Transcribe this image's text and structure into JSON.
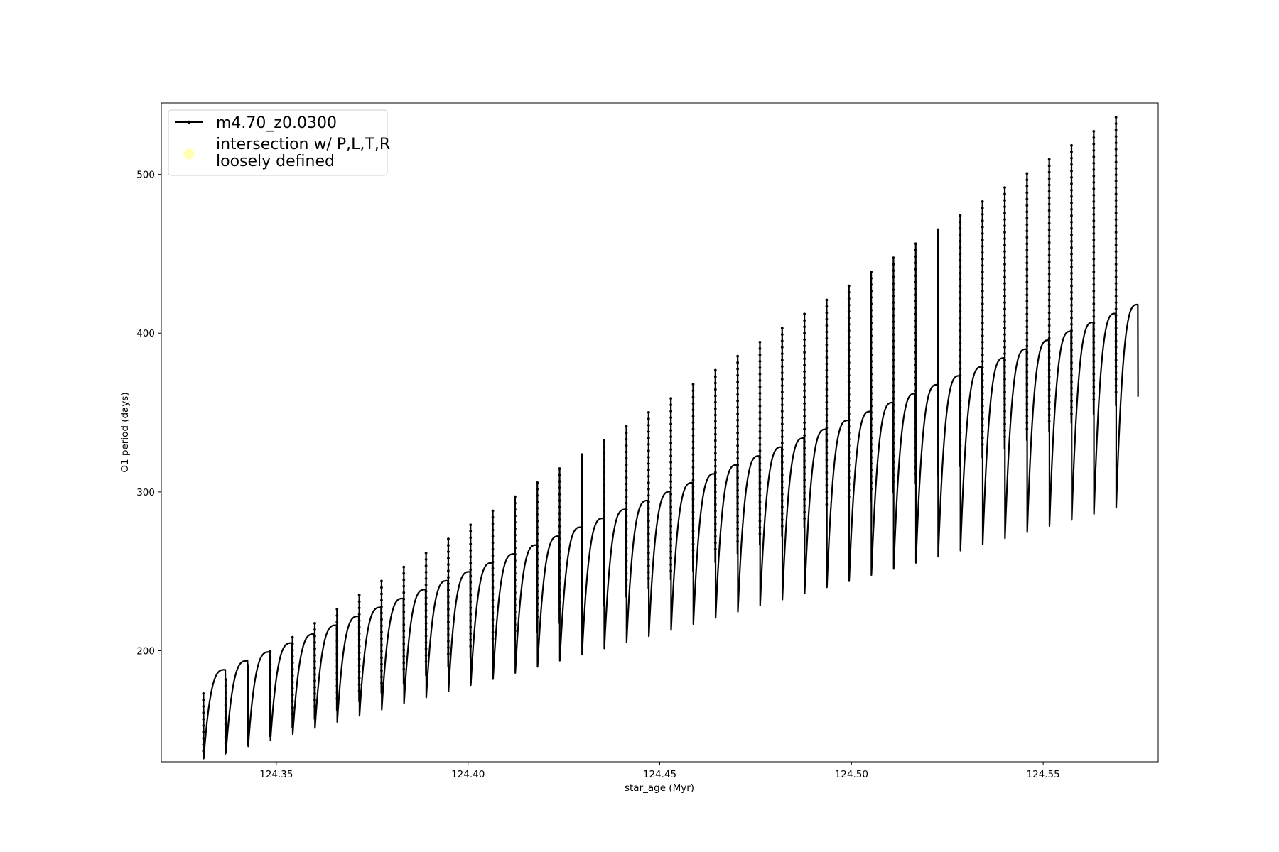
{
  "chart_data": {
    "type": "line",
    "xlabel": "star_age (Myr)",
    "ylabel": "O1 period (days)",
    "xlim": [
      124.32,
      124.58
    ],
    "ylim": [
      130,
      545
    ],
    "xticks": [
      {
        "value": 124.35,
        "label": "124.35"
      },
      {
        "value": 124.4,
        "label": "124.40"
      },
      {
        "value": 124.45,
        "label": "124.45"
      },
      {
        "value": 124.5,
        "label": "124.50"
      },
      {
        "value": 124.55,
        "label": "124.55"
      }
    ],
    "yticks": [
      {
        "value": 200,
        "label": "200"
      },
      {
        "value": 300,
        "label": "300"
      },
      {
        "value": 400,
        "label": "400"
      },
      {
        "value": 500,
        "label": "500"
      }
    ],
    "grid": false,
    "legend_position": "top-left",
    "legend": [
      {
        "label": "m4.70_z0.0300",
        "marker": "line-dot",
        "color": "#000000"
      },
      {
        "label_lines": [
          "intersection w/ P,L,T,R",
          "loosely defined"
        ],
        "marker": "circle",
        "color": "#ffffb3"
      }
    ],
    "series": [
      {
        "name": "m4.70_z0.0300",
        "color": "#000000",
        "pulses": {
          "x_start": 124.331,
          "x_end": 124.569,
          "count": 42,
          "spike_top": {
            "start": 173,
            "end": 536
          },
          "trough": {
            "start": 132,
            "end": 290
          },
          "plateau": {
            "start": 188,
            "end": 418
          },
          "reset_low": {
            "start": 135,
            "end": 360
          }
        }
      }
    ]
  }
}
